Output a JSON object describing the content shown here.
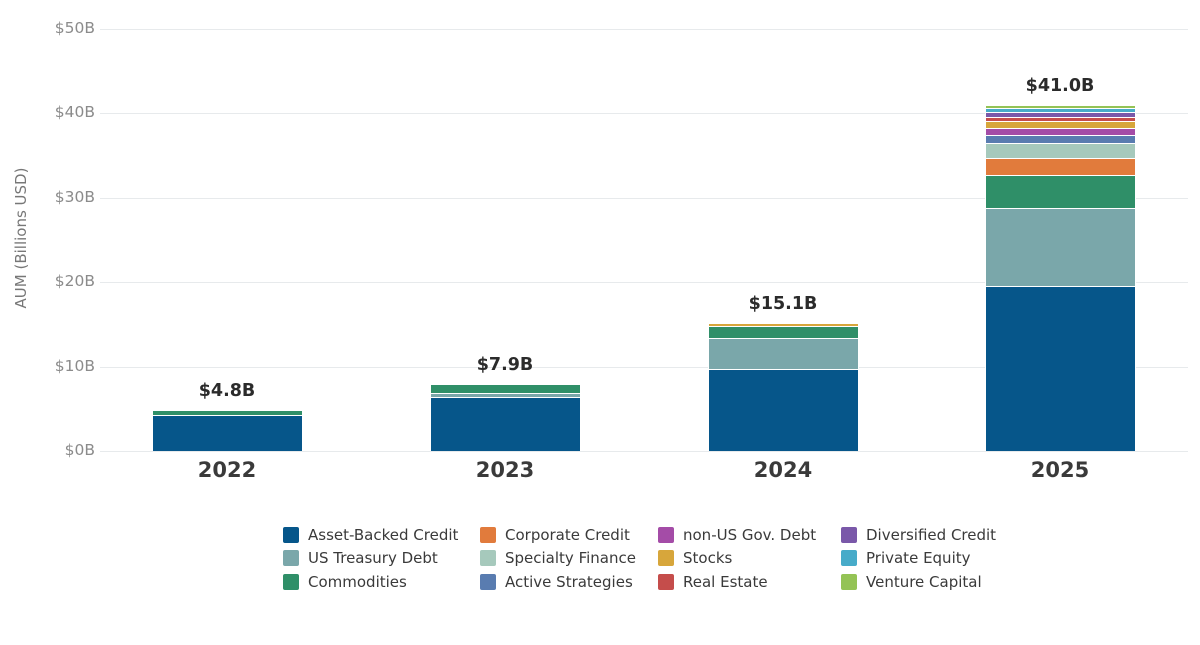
{
  "chart_data": {
    "type": "bar",
    "variant": "stacked-vertical",
    "title": "",
    "xlabel": "",
    "ylabel": "AUM (Billions USD)",
    "categories": [
      "2022",
      "2023",
      "2024",
      "2025"
    ],
    "series": [
      {
        "name": "Asset-Backed Credit",
        "color": "#06568a",
        "values": [
          4.25,
          6.4,
          9.7,
          19.5
        ]
      },
      {
        "name": "US Treasury Debt",
        "color": "#7aa7aa",
        "values": [
          0,
          0.5,
          3.7,
          9.2
        ]
      },
      {
        "name": "Commodities",
        "color": "#2f8f68",
        "values": [
          0.55,
          1.0,
          1.4,
          4.0
        ]
      },
      {
        "name": "Corporate Credit",
        "color": "#e17b3c",
        "values": [
          0,
          0,
          0,
          2.0
        ]
      },
      {
        "name": "Specialty Finance",
        "color": "#a6c9bc",
        "values": [
          0,
          0,
          0,
          1.7
        ]
      },
      {
        "name": "Active Strategies",
        "color": "#597cb0",
        "values": [
          0,
          0,
          0,
          1.0
        ]
      },
      {
        "name": "non-US Gov. Debt",
        "color": "#a44ca7",
        "values": [
          0,
          0,
          0,
          0.8
        ]
      },
      {
        "name": "Stocks",
        "color": "#d7a63b",
        "values": [
          0,
          0,
          0.3,
          0.8
        ]
      },
      {
        "name": "Real Estate",
        "color": "#c54d4b",
        "values": [
          0,
          0,
          0,
          0.55
        ]
      },
      {
        "name": "Diversified Credit",
        "color": "#7a58a9",
        "values": [
          0,
          0,
          0,
          0.55
        ]
      },
      {
        "name": "Private Equity",
        "color": "#47abc9",
        "values": [
          0,
          0,
          0,
          0.5
        ]
      },
      {
        "name": "Venture Capital",
        "color": "#94c355",
        "values": [
          0,
          0,
          0,
          0.4
        ]
      }
    ],
    "bar_total_labels": [
      "$4.8B",
      "$7.9B",
      "$15.1B",
      "$41.0B"
    ],
    "y_ticks": [
      {
        "value": 0,
        "label": "$0B"
      },
      {
        "value": 10,
        "label": "$10B"
      },
      {
        "value": 20,
        "label": "$20B"
      },
      {
        "value": 30,
        "label": "$30B"
      },
      {
        "value": 40,
        "label": "$40B"
      },
      {
        "value": 50,
        "label": "$50B"
      }
    ],
    "ylim": [
      0,
      50
    ],
    "grid": true,
    "legend_position": "bottom",
    "legend_rows": 3,
    "legend_reading_order": "column-major"
  },
  "style": {
    "grid_color": "#e7eaec",
    "tick_label_color": "#8b8b8b",
    "axis_title_color": "#777777",
    "year_label_color": "#3a3a3a",
    "total_label_color": "#2b2b2b",
    "background": "#ffffff",
    "segment_edge_color": "#ffffff"
  }
}
